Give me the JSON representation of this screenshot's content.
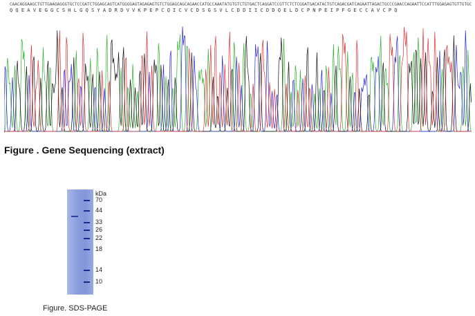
{
  "sequencing": {
    "dna": "CAACAGGAAGCTGTTGAAGAGGGTGCTCCGATCTGGAGCAGTCATGGGGAGTAGAGAGTGTCTGGAGCAGCAGAACCATGCCAAATATGTGTCTGTGACTCAGGATCCGTTCTCTCGGATGACATACTGTCAGACGATCAGAATTAGACTGCCCGAACCAGAATTCCATTTGGAGAGTGTTGTGCAGTTTGCCCACAG",
    "protein": "Q Q E A V E G G C S H L G Q S Y A D R D V V K P E P C Q I C V C D S G S V L C D D I I C D D Q E L D C P N P E I P F G E C C A V C P Q",
    "caption": "Figure . Gene Sequencing (extract)",
    "colors": {
      "A": "#2fb02f",
      "C": "#2424d8",
      "G": "#111111",
      "T": "#e03030"
    }
  },
  "gel": {
    "unit": "kDa",
    "markers": [
      "70",
      "44",
      "33",
      "26",
      "22",
      "18",
      "14",
      "10"
    ],
    "caption": "Figure. SDS-PAGE"
  }
}
